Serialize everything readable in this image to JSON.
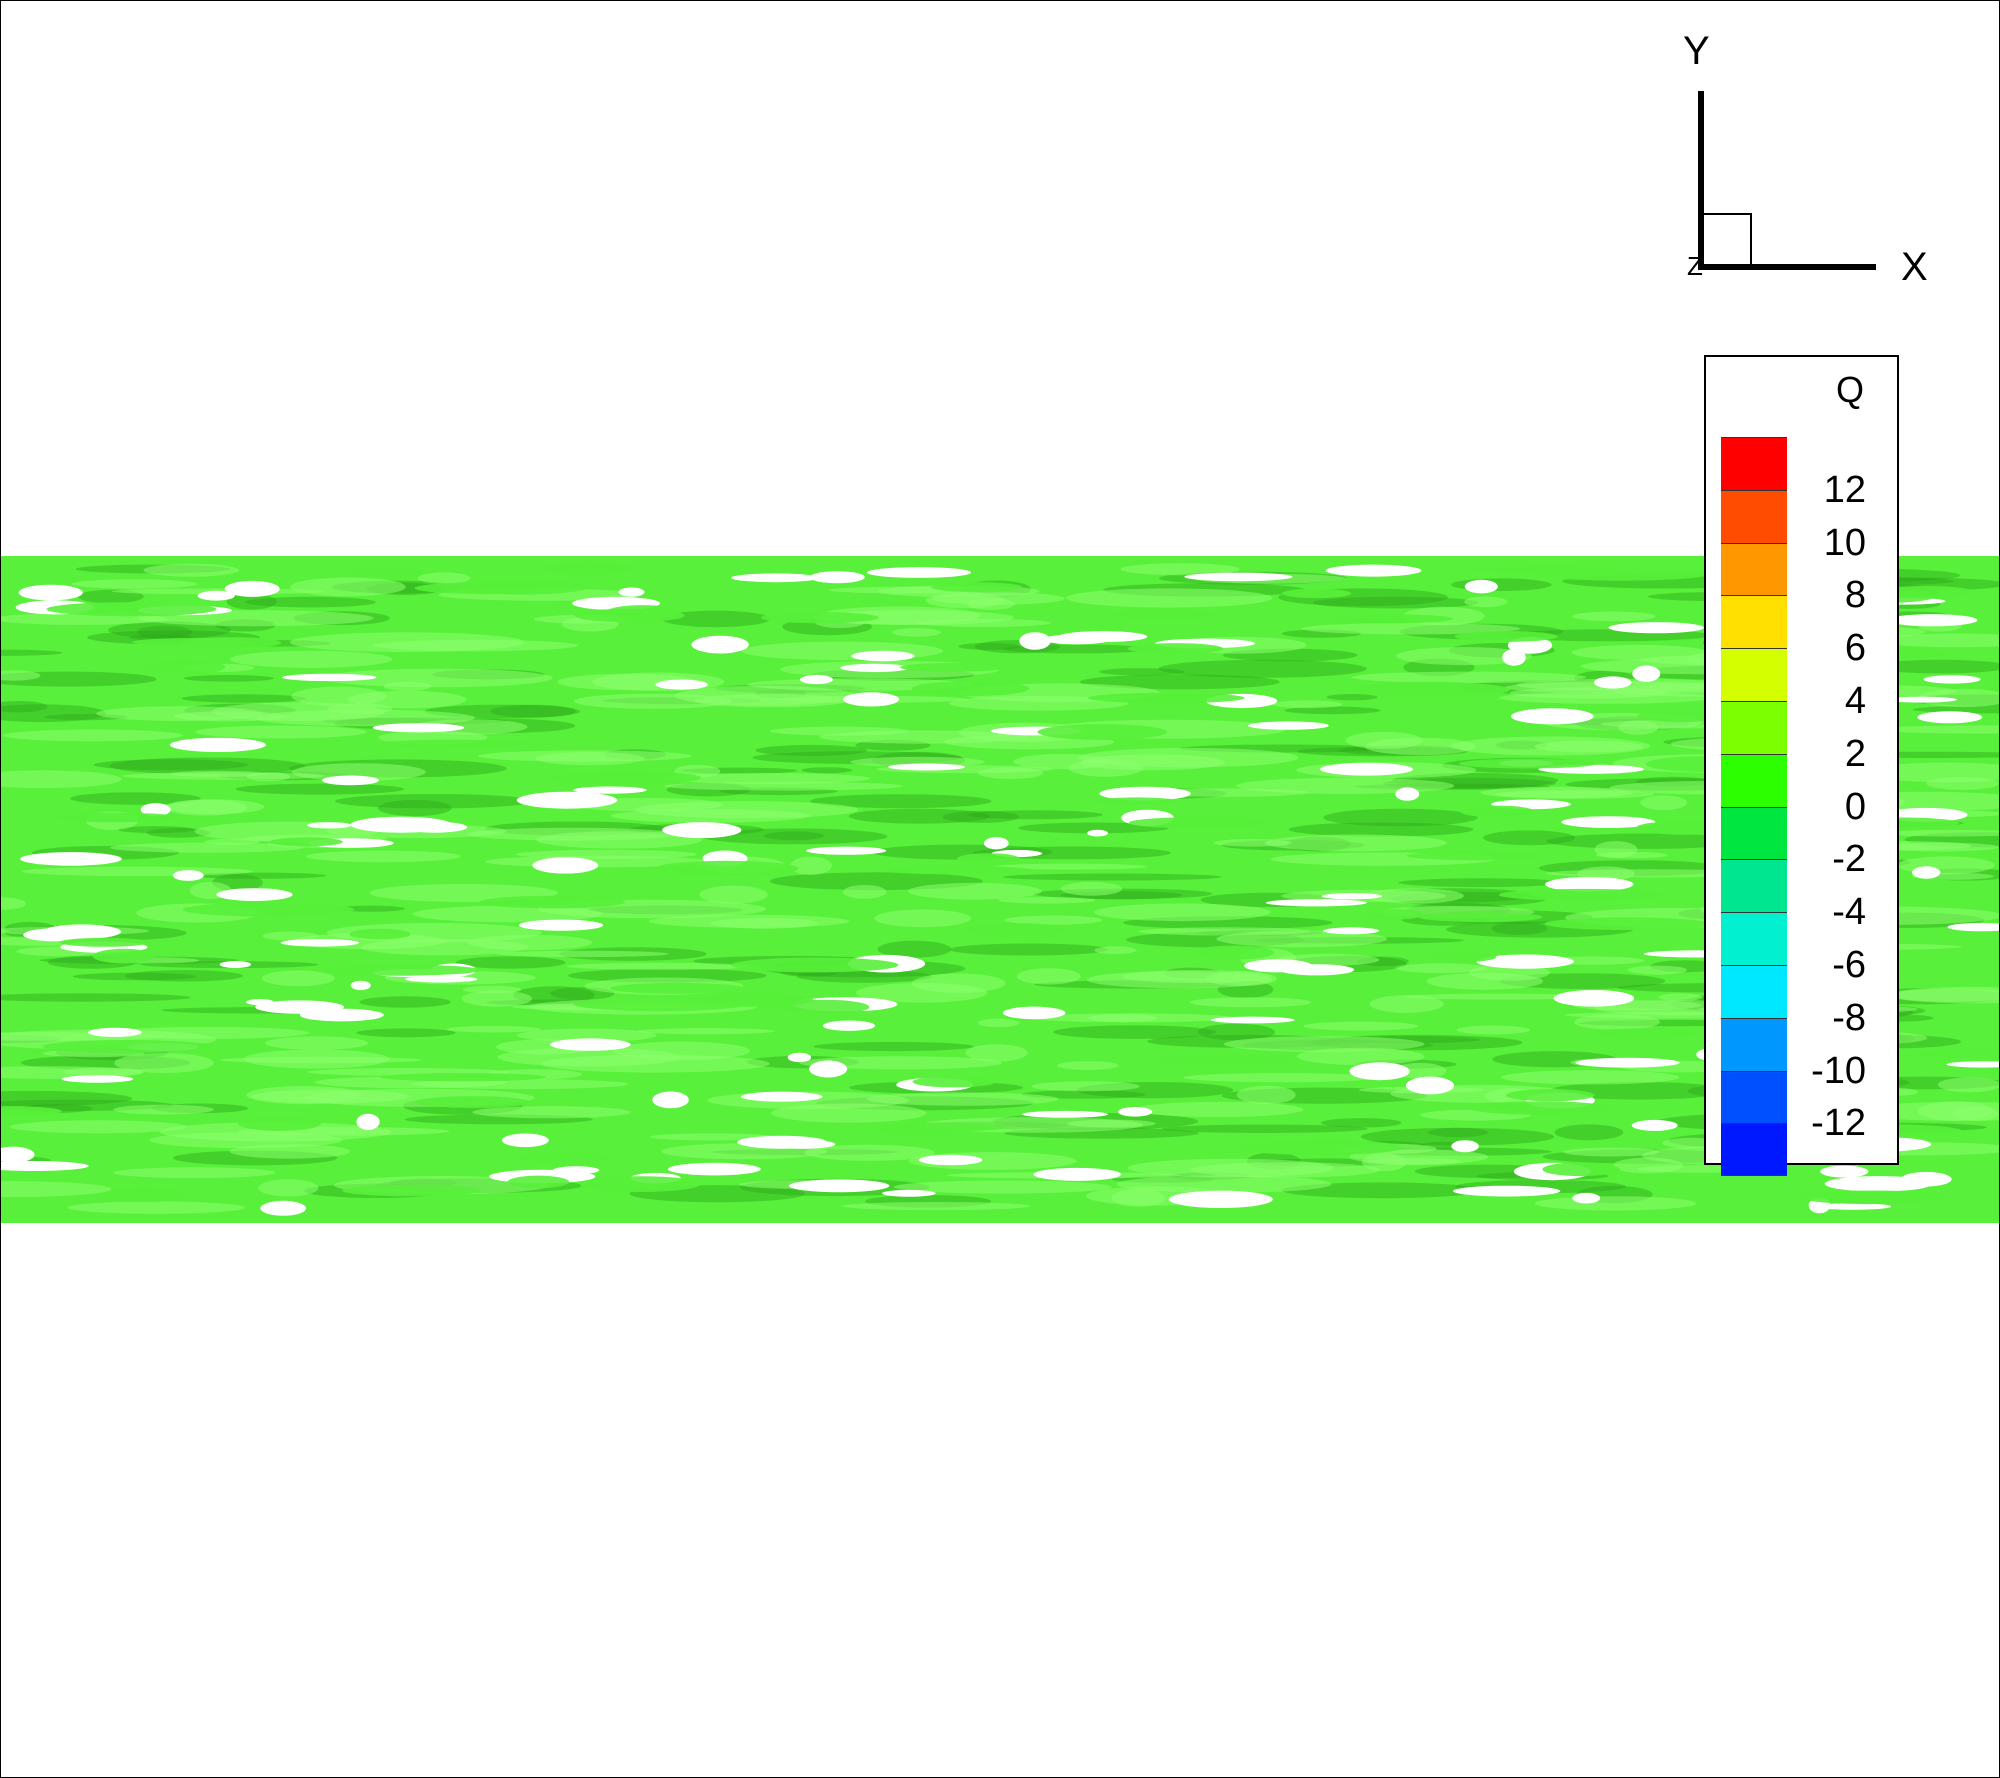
{
  "axes": {
    "y_label": "Y",
    "x_label": "X",
    "z_label": "Z"
  },
  "legend": {
    "title": "Q",
    "colors": [
      "#ff0000",
      "#ff4c00",
      "#ff9800",
      "#ffe000",
      "#d4ff00",
      "#7cff00",
      "#2cff00",
      "#00e640",
      "#00e690",
      "#00f0d0",
      "#00e8ff",
      "#0098ff",
      "#0050ff",
      "#0018ff"
    ],
    "ticks": [
      "12",
      "10",
      "8",
      "6",
      "4",
      "2",
      "0",
      "-2",
      "-4",
      "-6",
      "-8",
      "-10",
      "-12"
    ]
  },
  "field": {
    "band_color": "#58f03a",
    "highlight_color": "#8cff6e",
    "shadow_color": "#2ca81a"
  }
}
